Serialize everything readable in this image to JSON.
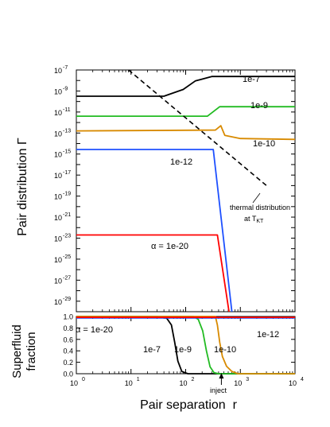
{
  "chart_data": [
    {
      "type": "line",
      "ylabel": "Pair distribution Γ",
      "xscale": "log",
      "yscale": "log",
      "xlim": [
        1,
        10000
      ],
      "ylim": [
        1e-30,
        1e-07
      ],
      "x_ticks": [
        "10",
        "10",
        "10",
        "10",
        "10"
      ],
      "x_tick_exps": [
        "0",
        "1",
        "2",
        "3",
        "4"
      ],
      "y_ticks": [
        "10",
        "10",
        "10",
        "10",
        "10",
        "10",
        "10",
        "10",
        "10",
        "10",
        "10",
        "10"
      ],
      "y_tick_exps": [
        "-7",
        "-9",
        "-11",
        "-13",
        "-15",
        "-17",
        "-19",
        "-21",
        "-23",
        "-25",
        "-27",
        "-29"
      ],
      "series": [
        {
          "name": "1e-7",
          "color": "#000000",
          "points": [
            [
              1,
              3.2e-10
            ],
            [
              40,
              3.2e-10
            ],
            [
              90,
              1.4e-09
            ],
            [
              150,
              9e-09
            ],
            [
              300,
              2.4e-08
            ],
            [
              10000,
              2.4e-08
            ]
          ]
        },
        {
          "name": "1e-9",
          "color": "#22bb22",
          "points": [
            [
              1,
              4e-12
            ],
            [
              250,
              4e-12
            ],
            [
              420,
              3.2e-11
            ],
            [
              10000,
              3.2e-11
            ]
          ]
        },
        {
          "name": "1e-10",
          "color": "#d88a00",
          "points": [
            [
              1,
              1.6e-13
            ],
            [
              350,
              1.9e-13
            ],
            [
              440,
              5e-13
            ],
            [
              520,
              6e-14
            ],
            [
              1000,
              3e-14
            ],
            [
              10000,
              2.5e-14
            ]
          ]
        },
        {
          "name": "1e-12",
          "color": "#1e50ff",
          "points": [
            [
              1,
              2.7e-15
            ],
            [
              320,
              2.7e-15
            ],
            [
              700,
              1e-30
            ]
          ]
        },
        {
          "name": "α = 1e-20",
          "color": "#ff0000",
          "points": [
            [
              1,
              2e-23
            ],
            [
              380,
              2e-23
            ],
            [
              620,
              1e-30
            ]
          ]
        },
        {
          "name": "thermal distribution at T_KT",
          "color": "#000000",
          "dashed": true,
          "points": [
            [
              9,
              1e-07
            ],
            [
              3000,
              1e-18
            ]
          ]
        }
      ],
      "annotations": {
        "a1": "1e-7",
        "a2": "1e-9",
        "a3": "1e-10",
        "a4": "1e-12",
        "a5": "α = 1e-20",
        "thermal_line1": "thermal distribution",
        "thermal_line2": "at T",
        "thermal_sub": "KT"
      }
    },
    {
      "type": "line",
      "ylabel_line1": "Superfluid",
      "ylabel_line2": "fraction",
      "xlabel": "Pair separation  r",
      "xscale": "log",
      "xlim": [
        1,
        10000
      ],
      "ylim": [
        0,
        1
      ],
      "y_ticks": [
        "0.0",
        "0.2",
        "0.4",
        "0.6",
        "0.8",
        "1.0"
      ],
      "x_ticks": [
        "10",
        "10",
        "10",
        "10",
        "10"
      ],
      "x_tick_exps": [
        "0",
        "1",
        "2",
        "3",
        "4"
      ],
      "series": [
        {
          "name": "1e-7",
          "color": "#000000",
          "points": [
            [
              1,
              1
            ],
            [
              30,
              1
            ],
            [
              45,
              0.97
            ],
            [
              55,
              0.85
            ],
            [
              63,
              0.55
            ],
            [
              72,
              0.22
            ],
            [
              85,
              0.04
            ],
            [
              110,
              0
            ],
            [
              10000,
              0
            ]
          ]
        },
        {
          "name": "1e-9",
          "color": "#22bb22",
          "points": [
            [
              1,
              1
            ],
            [
              140,
              1
            ],
            [
              170,
              0.95
            ],
            [
              205,
              0.75
            ],
            [
              240,
              0.4
            ],
            [
              280,
              0.12
            ],
            [
              330,
              0.02
            ],
            [
              400,
              0
            ],
            [
              10000,
              0
            ]
          ]
        },
        {
          "name": "1e-10",
          "color": "#d88a00",
          "points": [
            [
              1,
              1
            ],
            [
              350,
              1
            ],
            [
              380,
              0.85
            ],
            [
              420,
              0.55
            ],
            [
              470,
              0.3
            ],
            [
              560,
              0.13
            ],
            [
              700,
              0.04
            ],
            [
              900,
              0
            ],
            [
              10000,
              0
            ]
          ]
        },
        {
          "name": "1e-12",
          "color": "#1e50ff",
          "points": [
            [
              1,
              0.975
            ],
            [
              10000,
              0.975
            ]
          ]
        },
        {
          "name": "α = 1e-20",
          "color": "#ff0000",
          "points": [
            [
              1,
              0.985
            ],
            [
              10000,
              0.985
            ]
          ]
        }
      ],
      "annotations": {
        "b1": "α = 1e-20",
        "b2": "1e-7",
        "b3": "1e-9",
        "b4": "1e-10",
        "b5": "1e-12",
        "inject": "inject",
        "inject_x": 450
      }
    }
  ]
}
